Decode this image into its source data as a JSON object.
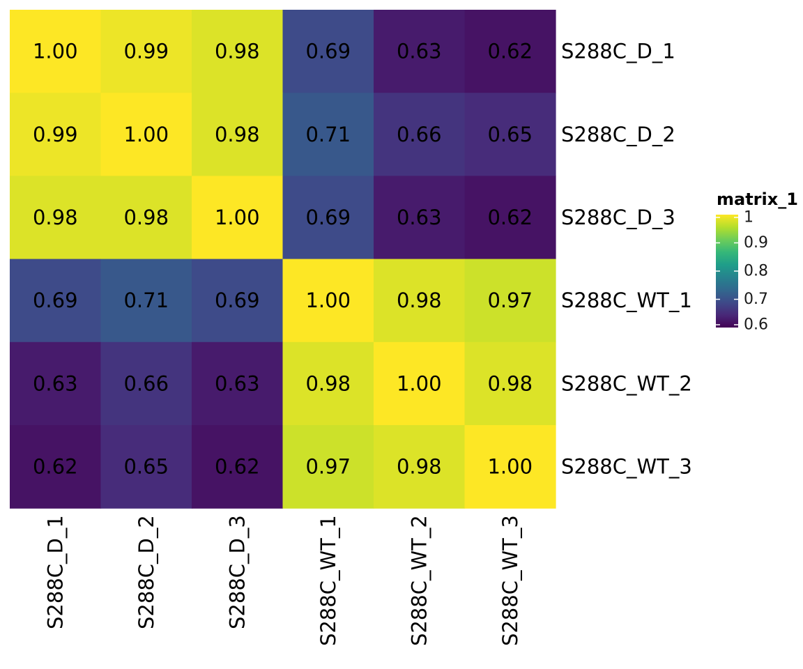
{
  "chart_data": {
    "type": "heatmap",
    "row_labels": [
      "S288C_D_1",
      "S288C_D_2",
      "S288C_D_3",
      "S288C_WT_1",
      "S288C_WT_2",
      "S288C_WT_3"
    ],
    "col_labels": [
      "S288C_D_1",
      "S288C_D_2",
      "S288C_D_3",
      "S288C_WT_1",
      "S288C_WT_2",
      "S288C_WT_3"
    ],
    "values": [
      [
        1.0,
        0.99,
        0.98,
        0.69,
        0.63,
        0.62
      ],
      [
        0.99,
        1.0,
        0.98,
        0.71,
        0.66,
        0.65
      ],
      [
        0.98,
        0.98,
        1.0,
        0.69,
        0.63,
        0.62
      ],
      [
        0.69,
        0.71,
        0.69,
        1.0,
        0.98,
        0.97
      ],
      [
        0.63,
        0.66,
        0.63,
        0.98,
        1.0,
        0.98
      ],
      [
        0.62,
        0.65,
        0.62,
        0.97,
        0.98,
        1.0
      ]
    ],
    "cell_labels": [
      [
        "1.00",
        "0.99",
        "0.98",
        "0.69",
        "0.63",
        "0.62"
      ],
      [
        "0.99",
        "1.00",
        "0.98",
        "0.71",
        "0.66",
        "0.65"
      ],
      [
        "0.98",
        "0.98",
        "1.00",
        "0.69",
        "0.63",
        "0.62"
      ],
      [
        "0.69",
        "0.71",
        "0.69",
        "1.00",
        "0.98",
        "0.97"
      ],
      [
        "0.63",
        "0.66",
        "0.63",
        "0.98",
        "1.00",
        "0.98"
      ],
      [
        "0.62",
        "0.65",
        "0.62",
        "0.97",
        "0.98",
        "1.00"
      ]
    ],
    "color_scale": {
      "name": "viridis",
      "domain": [
        0.6,
        1.0
      ],
      "colors": [
        "#440154",
        "#482878",
        "#3E4A89",
        "#31688E",
        "#26828E",
        "#1F9E89",
        "#35B779",
        "#6DCD59",
        "#B4DE2C",
        "#FDE725"
      ]
    },
    "legend": {
      "title": "matrix_1",
      "ticks": [
        1.0,
        0.9,
        0.8,
        0.7,
        0.6
      ],
      "tick_labels": [
        "1",
        "0.9",
        "0.8",
        "0.7",
        "0.6"
      ],
      "placement": "right"
    }
  }
}
